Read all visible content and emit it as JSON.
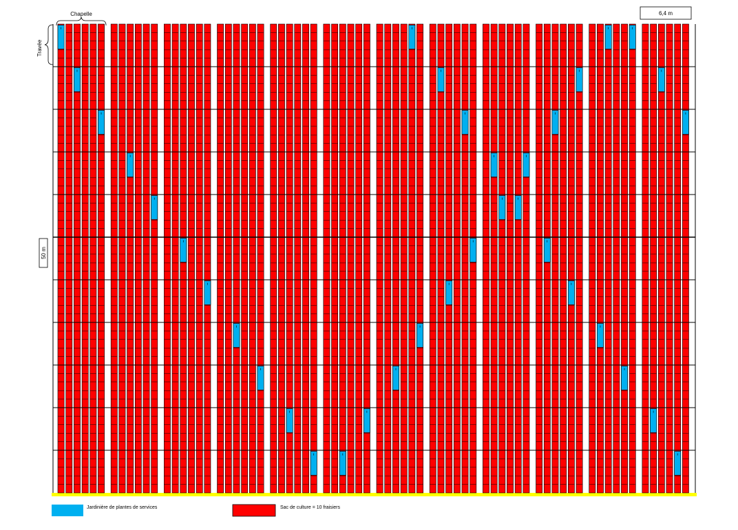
{
  "labels": {
    "chapelle": "Chapelle",
    "travee": "Travée",
    "length": "50 m",
    "width": "6,4 m"
  },
  "legend": {
    "planter_label": "Jardinière de plantes de services",
    "bag_label": "Sac de culture = 10 fraisiers"
  },
  "colors": {
    "bag": "#ff0000",
    "planter": "#00b0f0",
    "ground": "#ffff00",
    "line": "#000000"
  },
  "chart_data": {
    "type": "grid",
    "columns": 72,
    "travees": 11,
    "rows_per_travee": 5,
    "chapelles": 12,
    "columns_per_chapelle": 6,
    "planter_cells": [
      [
        0,
        0
      ],
      [
        2,
        1
      ],
      [
        5,
        2
      ],
      [
        8,
        3
      ],
      [
        11,
        4
      ],
      [
        14,
        5
      ],
      [
        17,
        6
      ],
      [
        20,
        7
      ],
      [
        23,
        8
      ],
      [
        26,
        9
      ],
      [
        29,
        10
      ],
      [
        32,
        10
      ],
      [
        35,
        9
      ],
      [
        38,
        8
      ],
      [
        41,
        7
      ],
      [
        44,
        6
      ],
      [
        47,
        5
      ],
      [
        50,
        4
      ],
      [
        53,
        3
      ],
      [
        56,
        2
      ],
      [
        59,
        1
      ],
      [
        62,
        0
      ],
      [
        65,
        0
      ],
      [
        68,
        1
      ],
      [
        71,
        2
      ],
      [
        70,
        10
      ],
      [
        67,
        9
      ],
      [
        64,
        8
      ],
      [
        61,
        7
      ],
      [
        58,
        6
      ],
      [
        55,
        5
      ],
      [
        52,
        4
      ],
      [
        49,
        3
      ],
      [
        46,
        2
      ],
      [
        43,
        1
      ],
      [
        40,
        0
      ]
    ]
  }
}
